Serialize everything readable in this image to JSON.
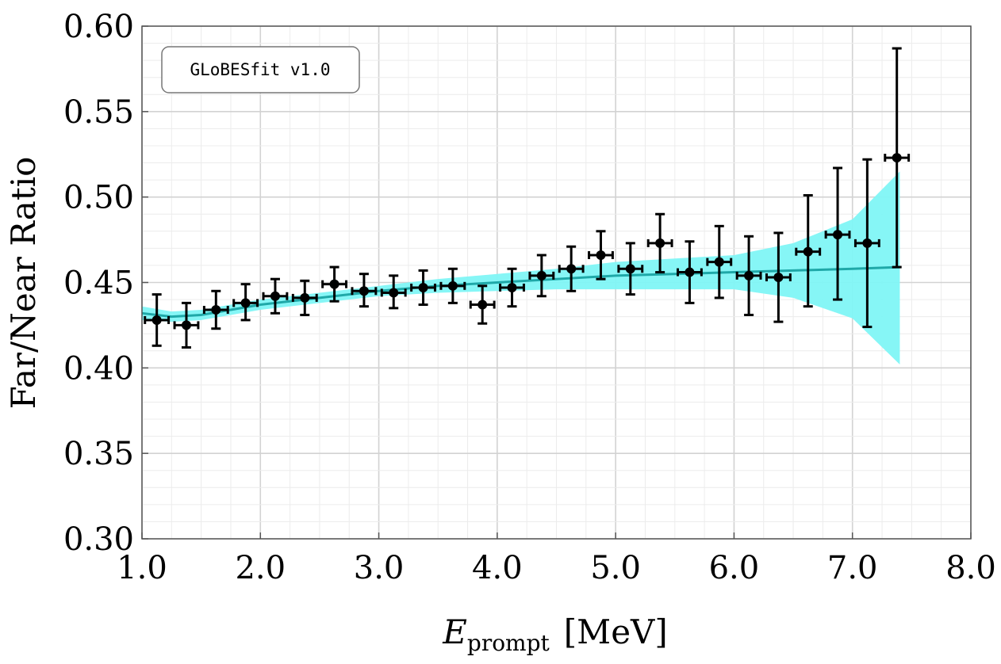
{
  "chart_data": {
    "type": "scatter",
    "annotation": "GLoBESfit v1.0",
    "xlabel": {
      "main": "E",
      "subscript": "prompt",
      "unit": "[MeV]"
    },
    "ylabel": "Far/Near Ratio",
    "xlim": [
      1.0,
      8.0
    ],
    "ylim": [
      0.3,
      0.6
    ],
    "xticks": [
      1.0,
      2.0,
      3.0,
      4.0,
      5.0,
      6.0,
      7.0,
      8.0
    ],
    "xtick_labels": [
      "1.0",
      "2.0",
      "3.0",
      "4.0",
      "5.0",
      "6.0",
      "7.0",
      "8.0"
    ],
    "yticks": [
      0.3,
      0.35,
      0.4,
      0.45,
      0.5,
      0.55,
      0.6
    ],
    "ytick_labels": [
      "0.30",
      "0.35",
      "0.40",
      "0.45",
      "0.50",
      "0.55",
      "0.60"
    ],
    "grid": true,
    "colors": {
      "band": "#7ff5f5",
      "line": "#1fa8a8",
      "points": "#000000",
      "grid_major": "#d2d2d2",
      "grid_minor": "#ececec"
    },
    "series": [
      {
        "kind": "data",
        "x": [
          1.125,
          1.375,
          1.625,
          1.875,
          2.125,
          2.375,
          2.625,
          2.875,
          3.125,
          3.375,
          3.625,
          3.875,
          4.125,
          4.375,
          4.625,
          4.875,
          5.125,
          5.375,
          5.625,
          5.875,
          6.125,
          6.375,
          6.625,
          6.875,
          7.125,
          7.375
        ],
        "x_err": 0.1,
        "y": [
          0.428,
          0.425,
          0.434,
          0.438,
          0.442,
          0.441,
          0.449,
          0.445,
          0.444,
          0.447,
          0.448,
          0.437,
          0.447,
          0.454,
          0.458,
          0.466,
          0.458,
          0.473,
          0.456,
          0.462,
          0.454,
          0.453,
          0.468,
          0.478,
          0.473,
          0.523
        ],
        "y_err_low": [
          0.015,
          0.013,
          0.011,
          0.01,
          0.01,
          0.01,
          0.01,
          0.009,
          0.009,
          0.01,
          0.01,
          0.011,
          0.011,
          0.012,
          0.013,
          0.014,
          0.015,
          0.017,
          0.018,
          0.021,
          0.023,
          0.026,
          0.032,
          0.038,
          0.049,
          0.064
        ],
        "y_err_high": [
          0.015,
          0.013,
          0.011,
          0.011,
          0.01,
          0.01,
          0.01,
          0.01,
          0.01,
          0.01,
          0.01,
          0.011,
          0.011,
          0.012,
          0.013,
          0.014,
          0.015,
          0.017,
          0.018,
          0.021,
          0.023,
          0.026,
          0.033,
          0.039,
          0.049,
          0.064
        ]
      },
      {
        "kind": "fit",
        "x": [
          1.0,
          1.25,
          1.5,
          1.75,
          2.0,
          2.5,
          3.0,
          3.5,
          4.0,
          4.5,
          5.0,
          5.5,
          6.0,
          6.5,
          7.0,
          7.4
        ],
        "y": [
          0.432,
          0.43,
          0.431,
          0.434,
          0.437,
          0.441,
          0.445,
          0.448,
          0.45,
          0.452,
          0.454,
          0.455,
          0.456,
          0.457,
          0.458,
          0.459
        ],
        "band_low": [
          0.428,
          0.427,
          0.428,
          0.431,
          0.434,
          0.438,
          0.442,
          0.444,
          0.445,
          0.446,
          0.446,
          0.446,
          0.446,
          0.441,
          0.429,
          0.402
        ],
        "band_high": [
          0.436,
          0.433,
          0.434,
          0.437,
          0.44,
          0.444,
          0.448,
          0.452,
          0.455,
          0.458,
          0.462,
          0.464,
          0.466,
          0.473,
          0.487,
          0.515
        ]
      }
    ]
  }
}
